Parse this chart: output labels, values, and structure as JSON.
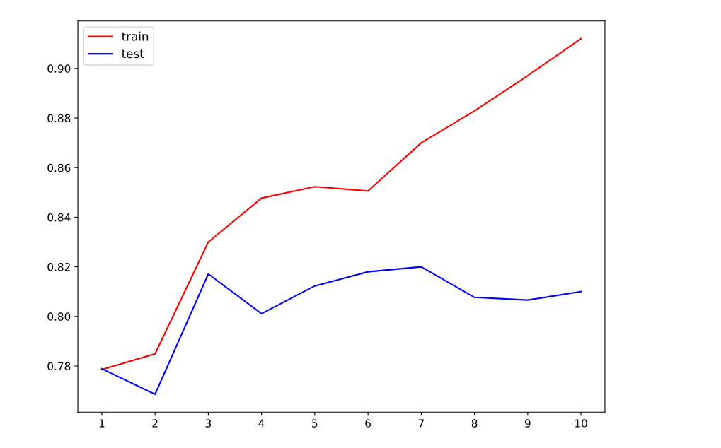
{
  "chart_data": {
    "type": "line",
    "x": [
      1,
      2,
      3,
      4,
      5,
      6,
      7,
      8,
      9,
      10
    ],
    "series": [
      {
        "name": "train",
        "color": "#ff0000",
        "values": [
          0.7786,
          0.7849,
          0.83,
          0.8477,
          0.8523,
          0.8506,
          0.87,
          0.8829,
          0.8971,
          0.912
        ]
      },
      {
        "name": "test",
        "color": "#0000ff",
        "values": [
          0.7789,
          0.7686,
          0.8171,
          0.8011,
          0.8123,
          0.818,
          0.82,
          0.8077,
          0.8066,
          0.81
        ]
      }
    ],
    "xlim": [
      0.55,
      10.45
    ],
    "xticks": [
      1,
      2,
      3,
      4,
      5,
      6,
      7,
      8,
      9,
      10
    ],
    "ylim": [
      0.7614,
      0.9191
    ],
    "yticks": [
      {
        "value": 0.78,
        "label": "0.78"
      },
      {
        "value": 0.8,
        "label": "0.80"
      },
      {
        "value": 0.82,
        "label": "0.82"
      },
      {
        "value": 0.84,
        "label": "0.84"
      },
      {
        "value": 0.86,
        "label": "0.86"
      },
      {
        "value": 0.88,
        "label": "0.88"
      },
      {
        "value": 0.9,
        "label": "0.90"
      }
    ],
    "grid": false,
    "legend": "top left",
    "marker": "none",
    "line_style": "solid"
  }
}
